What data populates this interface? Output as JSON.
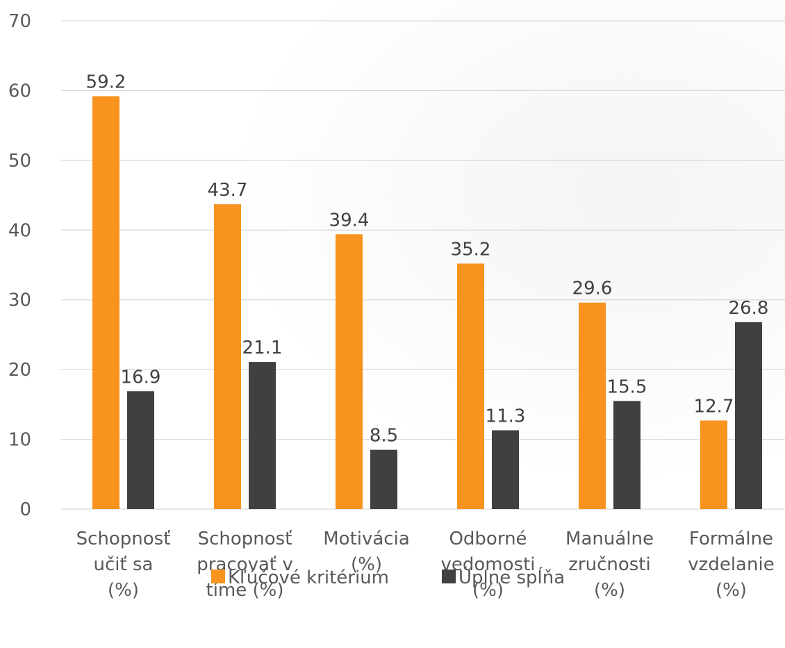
{
  "chart_data": {
    "type": "bar",
    "categories": [
      [
        "Schopnosť",
        "učiť sa",
        "(%)"
      ],
      [
        "Schopnosť",
        "pracovať v",
        "tíme (%)"
      ],
      [
        "Motivácia",
        "(%)"
      ],
      [
        "Odborné",
        "vedomosti",
        "(%)"
      ],
      [
        "Manuálne",
        "zručnosti",
        "(%)"
      ],
      [
        "Formálne",
        "vzdelanie",
        "(%)"
      ]
    ],
    "series": [
      {
        "name": "Kľúčové kritérium",
        "color": "#f7931e",
        "values": [
          59.2,
          43.7,
          39.4,
          35.2,
          29.6,
          12.7
        ]
      },
      {
        "name": "Úplne spĺňa",
        "color": "#404040",
        "values": [
          16.9,
          21.1,
          8.5,
          11.3,
          15.5,
          26.8
        ]
      }
    ],
    "ylim": [
      0,
      70
    ],
    "yticks": [
      0,
      10,
      20,
      30,
      40,
      50,
      60,
      70
    ],
    "grid": true,
    "legend_position": "bottom"
  }
}
